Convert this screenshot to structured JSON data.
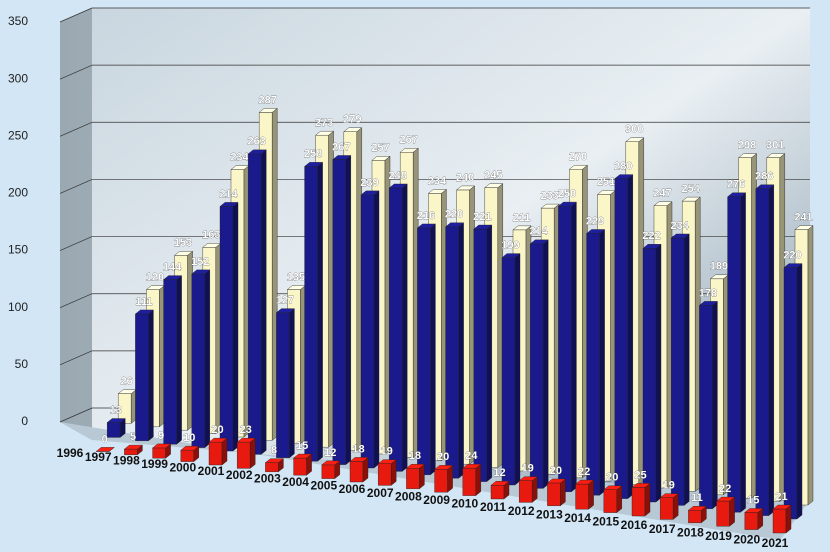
{
  "chart_data": {
    "type": "bar3d",
    "categories": [
      "1996",
      "1997",
      "1998",
      "1999",
      "2000",
      "2001",
      "2002",
      "2003",
      "2004",
      "2005",
      "2006",
      "2007",
      "2008",
      "2009",
      "2010",
      "2011",
      "2012",
      "2013",
      "2014",
      "2015",
      "2016",
      "2017",
      "2018",
      "2019",
      "2020",
      "2021"
    ],
    "series": [
      {
        "color": "#fbf6c8",
        "values": [
          null,
          26,
          120,
          153,
          163,
          234,
          287,
          135,
          273,
          279,
          257,
          267,
          234,
          240,
          245,
          211,
          233,
          270,
          251,
          300,
          247,
          254,
          189,
          298,
          301,
          241
        ]
      },
      {
        "color": "#1a1a8c",
        "values": [
          null,
          13,
          111,
          144,
          152,
          214,
          263,
          127,
          258,
          267,
          239,
          248,
          216,
          220,
          221,
          199,
          214,
          250,
          229,
          280,
          222,
          234,
          178,
          276,
          286,
          220
        ]
      },
      {
        "color": "#e81a10",
        "values": [
          null,
          0,
          5,
          9,
          10,
          20,
          23,
          8,
          15,
          12,
          18,
          19,
          18,
          20,
          24,
          12,
          19,
          20,
          22,
          20,
          25,
          19,
          11,
          22,
          15,
          21
        ]
      }
    ],
    "ylim": [
      0,
      350
    ],
    "yticks": [
      0,
      50,
      100,
      150,
      200,
      250,
      300,
      350
    ],
    "grid": true
  }
}
